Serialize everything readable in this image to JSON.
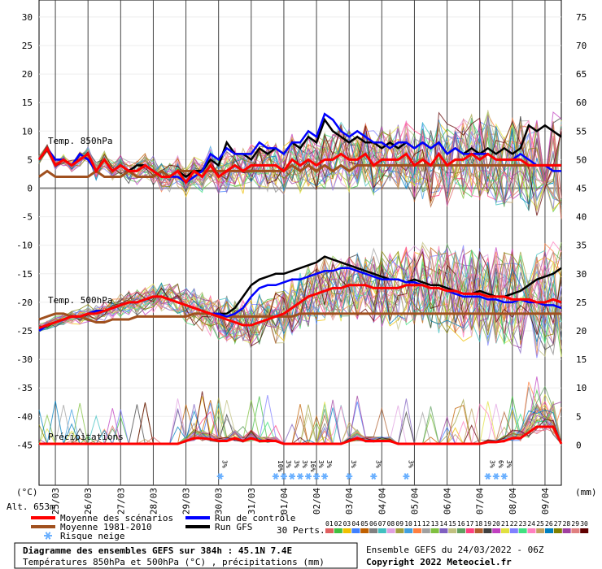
{
  "chart_data": {
    "type": "line",
    "title": "Diagramme des ensembles GEFS sur 384h : 45.1N 7.4E",
    "subtitle": "Températures 850hPa et 500hPa (°C) , précipitations (mm)",
    "y_left_unit": "(°C)",
    "y_right_unit": "(mm)",
    "altitude": "Alt. 653m",
    "y_left_ticks": [
      30,
      25,
      20,
      15,
      10,
      5,
      0,
      -5,
      -10,
      -15,
      -20,
      -25,
      -30,
      -35,
      -40,
      -45
    ],
    "y_right_ticks": [
      75,
      70,
      65,
      60,
      55,
      50,
      45,
      40,
      35,
      30,
      25,
      20,
      15,
      10,
      5,
      0
    ],
    "x_dates": [
      "25/03",
      "26/03",
      "27/03",
      "28/03",
      "29/03",
      "30/03",
      "31/03",
      "01/04",
      "02/04",
      "03/04",
      "04/04",
      "05/04",
      "06/04",
      "07/04",
      "08/04",
      "09/04"
    ],
    "panel_labels": {
      "t850": "Temp. 850hPa",
      "t500": "Temp. 500hPa",
      "precip": "Précipitations"
    },
    "snow_risk": [
      {
        "day": 6.05,
        "label": "3%"
      },
      {
        "day": 7.75,
        "label": "10%"
      },
      {
        "day": 8.0,
        "label": "3%"
      },
      {
        "day": 8.25,
        "label": "3%"
      },
      {
        "day": 8.5,
        "label": "3%"
      },
      {
        "day": 8.75,
        "label": "16%"
      },
      {
        "day": 9.0,
        "label": "3%"
      },
      {
        "day": 9.25,
        "label": "3%"
      },
      {
        "day": 10.0,
        "label": "3%"
      },
      {
        "day": 10.75,
        "label": "3%"
      },
      {
        "day": 11.75,
        "label": "3%"
      },
      {
        "day": 14.25,
        "label": "3%"
      },
      {
        "day": 14.5,
        "label": "6%"
      },
      {
        "day": 14.75,
        "label": "3%"
      }
    ],
    "series": [
      {
        "name": "Moyenne des scénarios",
        "color": "#ff0000",
        "t850": [
          5,
          7,
          4,
          5,
          4,
          5,
          6,
          3,
          5,
          3,
          4,
          3,
          3,
          4,
          3,
          2,
          2,
          3,
          1,
          3,
          2,
          4,
          2,
          3,
          4,
          3,
          4,
          4,
          4,
          4,
          3,
          5,
          4,
          5,
          4,
          5,
          5,
          6,
          5,
          5,
          6,
          4,
          5,
          5,
          5,
          6,
          4,
          5,
          4,
          6,
          4,
          5,
          5,
          6,
          5,
          6,
          5,
          5,
          5,
          5,
          4,
          4,
          4,
          4,
          4
        ],
        "t500": [
          -24.5,
          -24,
          -23.5,
          -23,
          -22.5,
          -22.5,
          -22,
          -22,
          -21.5,
          -21,
          -20.5,
          -20,
          -20,
          -19.5,
          -19,
          -19,
          -19.5,
          -20,
          -20.5,
          -21,
          -21.5,
          -22,
          -22.5,
          -23,
          -23.5,
          -24,
          -24,
          -23.5,
          -23,
          -22.5,
          -22,
          -21,
          -20,
          -19,
          -18.5,
          -18,
          -17.5,
          -17.5,
          -17,
          -17,
          -17,
          -17.5,
          -17.5,
          -17.5,
          -17.5,
          -17,
          -17,
          -17,
          -17.5,
          -17.5,
          -18,
          -18,
          -18.5,
          -18.5,
          -18.5,
          -19,
          -19,
          -19,
          -19.5,
          -19.5,
          -19.5,
          -20,
          -20,
          -19.5,
          -20
        ],
        "precip": [
          0,
          0,
          0,
          0,
          0,
          0,
          0,
          0,
          0,
          0,
          0,
          0,
          0,
          0,
          0,
          0,
          0,
          0,
          0.5,
          1,
          1,
          0.8,
          0.5,
          0.5,
          1,
          0.5,
          1,
          0.5,
          0.5,
          0.5,
          0,
          0,
          0,
          0,
          0,
          0,
          0,
          0,
          0.5,
          1,
          0.5,
          0.5,
          0.5,
          0.5,
          0,
          0,
          0,
          0,
          0,
          0,
          0,
          0,
          0,
          0,
          0,
          0.3,
          0.3,
          0.5,
          1,
          1,
          2,
          3,
          3,
          3,
          0
        ]
      },
      {
        "name": "Moyenne 1981-2010",
        "color": "#a0501e",
        "t850": [
          2,
          3,
          2,
          2,
          2,
          2,
          2,
          3,
          2,
          2,
          2,
          3,
          2,
          2,
          2,
          3,
          2,
          3,
          3,
          3,
          3,
          3,
          3,
          3,
          3,
          3,
          3,
          3,
          3,
          3,
          3,
          4,
          3,
          4,
          3,
          4,
          3,
          4,
          3,
          4,
          4,
          4,
          4,
          4,
          4,
          4,
          4,
          4,
          4,
          4,
          4,
          4,
          4,
          4,
          4,
          4,
          4,
          4,
          4,
          4,
          4,
          4,
          4,
          4,
          4
        ],
        "t500": [
          -23,
          -22.5,
          -22,
          -22,
          -22.5,
          -22.5,
          -23,
          -23.5,
          -23.5,
          -23,
          -23,
          -23,
          -22.5,
          -22.5,
          -22.5,
          -22.5,
          -22.5,
          -22.5,
          -22.5,
          -22,
          -22,
          -22,
          -22.5,
          -22.5,
          -22.5,
          -22.5,
          -22.5,
          -22.5,
          -22.5,
          -22.5,
          -22.5,
          -22.5,
          -22,
          -22,
          -22,
          -22,
          -22,
          -22,
          -22,
          -22,
          -22,
          -22,
          -22,
          -22,
          -22,
          -22,
          -22,
          -22,
          -22,
          -22,
          -22,
          -22,
          -22,
          -22,
          -22,
          -22,
          -22,
          -22,
          -22,
          -22,
          -22,
          -22,
          -22,
          -22,
          -22
        ]
      },
      {
        "name": "Run de contrôle",
        "color": "#0000ff",
        "t850": [
          5,
          7,
          5,
          5,
          4,
          6,
          5,
          3,
          5,
          3,
          4,
          3,
          3,
          4,
          3,
          2,
          2,
          2,
          1,
          2,
          3,
          6,
          5,
          7,
          6,
          6,
          6,
          8,
          7,
          7,
          6,
          8,
          8,
          10,
          9,
          13,
          12,
          10,
          9,
          10,
          9,
          8,
          8,
          7,
          8,
          8,
          7,
          8,
          7,
          8,
          6,
          7,
          6,
          6,
          6,
          6,
          5,
          5,
          5,
          6,
          5,
          4,
          4,
          3,
          3
        ],
        "t500": [
          -25,
          -24,
          -23.5,
          -23,
          -22.5,
          -22.5,
          -22,
          -21.5,
          -21.5,
          -21,
          -20.5,
          -20,
          -20,
          -19.5,
          -19,
          -19,
          -19.5,
          -20,
          -20.5,
          -21,
          -21.5,
          -22,
          -22,
          -22.5,
          -22,
          -21,
          -19,
          -17.5,
          -17,
          -17,
          -16.5,
          -16,
          -16,
          -15.5,
          -15,
          -14.5,
          -14.5,
          -14,
          -14,
          -14.5,
          -15,
          -15.5,
          -16,
          -16,
          -16,
          -16.5,
          -16.5,
          -17,
          -17.5,
          -17.5,
          -18,
          -18.5,
          -19,
          -19,
          -19,
          -19.5,
          -19.5,
          -20,
          -20,
          -19.5,
          -20,
          -20,
          -20.5,
          -20.5,
          -21
        ]
      },
      {
        "name": "Run GFS",
        "color": "#000000",
        "t850": [
          5,
          7,
          5,
          5,
          4,
          6,
          5,
          3,
          5,
          3,
          4,
          3,
          4,
          4,
          3,
          2,
          2,
          3,
          2,
          3,
          3,
          5,
          4,
          8,
          6,
          6,
          5,
          7,
          6,
          7,
          6,
          8,
          7,
          9,
          8,
          12,
          10,
          9,
          8,
          9,
          8,
          8,
          7,
          8,
          7,
          8,
          7,
          8,
          7,
          8,
          6,
          7,
          6,
          7,
          6,
          7,
          6,
          7,
          6,
          7,
          11,
          10,
          11,
          10,
          9
        ],
        "t500": [
          -25,
          -24,
          -23.5,
          -23,
          -22.5,
          -22.5,
          -22,
          -21.5,
          -21.5,
          -21,
          -20.5,
          -20,
          -20,
          -19.5,
          -19,
          -19,
          -19.5,
          -20,
          -20.5,
          -21,
          -21.5,
          -22,
          -22,
          -22,
          -21,
          -19,
          -17,
          -16,
          -15.5,
          -15,
          -15,
          -14.5,
          -14,
          -13.5,
          -13,
          -12,
          -12.5,
          -13,
          -13.5,
          -14,
          -14.5,
          -15,
          -15.5,
          -16,
          -16,
          -16.5,
          -16,
          -16.5,
          -17,
          -17,
          -17.5,
          -18,
          -18.5,
          -18.5,
          -18,
          -18.5,
          -19,
          -19,
          -18.5,
          -18,
          -17,
          -16,
          -15.5,
          -15,
          -14
        ]
      }
    ]
  },
  "legend": {
    "items": [
      {
        "label": "Moyenne des scénarios",
        "color": "#ff0000"
      },
      {
        "label": "Run de contrôle",
        "color": "#0000ff"
      },
      {
        "label": "Moyenne 1981-2010",
        "color": "#a0501e"
      },
      {
        "label": "Run GFS",
        "color": "#000000"
      },
      {
        "label": "Risque neige",
        "color": "#6ab0ff"
      }
    ],
    "perts_label": "30 Perts.",
    "perts_numbers": [
      "01",
      "02",
      "03",
      "04",
      "05",
      "06",
      "07",
      "08",
      "09",
      "10",
      "11",
      "12",
      "13",
      "14",
      "15",
      "16",
      "17",
      "18",
      "19",
      "20",
      "21",
      "22",
      "23",
      "24",
      "25",
      "26",
      "27",
      "28",
      "29",
      "30"
    ],
    "perts_colors": [
      "#e06060",
      "#40c040",
      "#f0c000",
      "#4080ff",
      "#c06000",
      "#808080",
      "#40c0c0",
      "#e0a0e0",
      "#a0a040",
      "#40a0e0",
      "#ff8040",
      "#a0a0a0",
      "#80c040",
      "#8060c0",
      "#c0c080",
      "#60a060",
      "#ff4080",
      "#b06030",
      "#404040",
      "#c040c0",
      "#e0e040",
      "#8080ff",
      "#40e080",
      "#ff80c0",
      "#c0a060",
      "#0080c0",
      "#808000",
      "#a040a0",
      "#e08080",
      "#600000"
    ]
  },
  "footer": {
    "title": "Diagramme des ensembles GEFS sur 384h : 45.1N 7.4E",
    "subtitle": "Températures 850hPa et 500hPa (°C) , précipitations (mm)",
    "run": "Ensemble GEFS du 24/03/2022 - 06Z",
    "copyright": "Copyright 2022 Meteociel.fr"
  }
}
